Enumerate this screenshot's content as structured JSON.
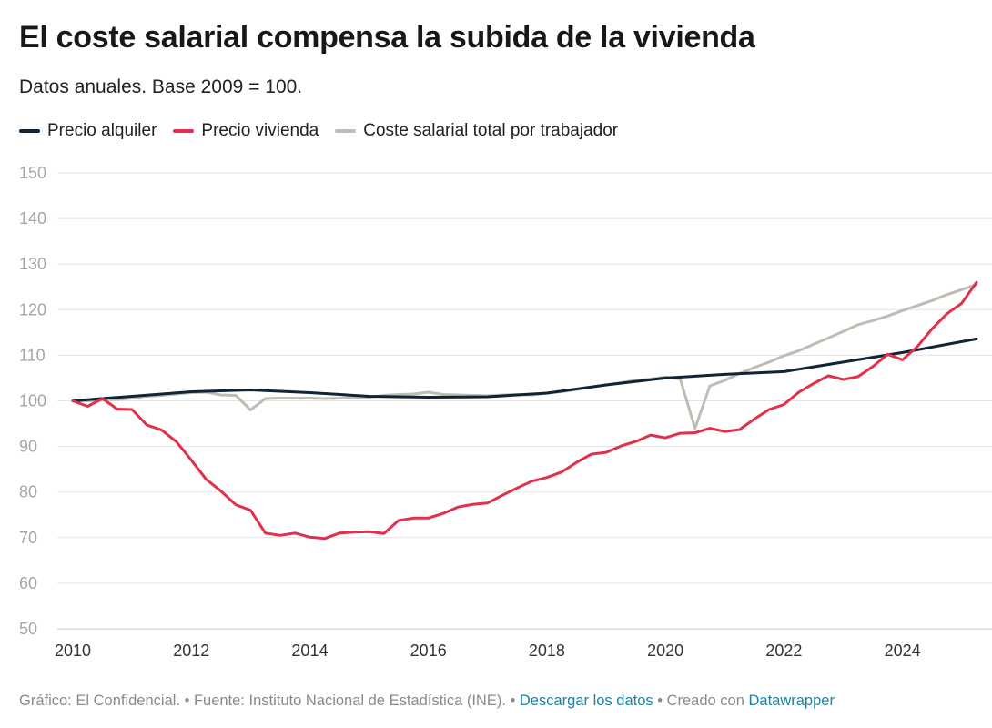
{
  "title": "El coste salarial compensa la subida de la vivienda",
  "subtitle": "Datos anuales. Base 2009 = 100.",
  "footer": {
    "prefix": "Gráfico: El Confidencial. • Fuente: Instituto Nacional de Estadística (INE). • ",
    "download": "Descargar los datos",
    "middle": " • Creado con ",
    "tool": "Datawrapper"
  },
  "chart_data": {
    "type": "line",
    "title": "El coste salarial compensa la subida de la vivienda",
    "subtitle": "Datos anuales. Base 2009 = 100.",
    "xlabel": "",
    "ylabel": "",
    "xlim": [
      2010,
      2025.25
    ],
    "ylim": [
      50,
      150
    ],
    "yticks": [
      50,
      60,
      70,
      80,
      90,
      100,
      110,
      120,
      130,
      140,
      150
    ],
    "xticks": [
      2010,
      2012,
      2014,
      2016,
      2018,
      2020,
      2022,
      2024
    ],
    "grid": "horizontal",
    "legend": "top-left",
    "series": [
      {
        "name": "Precio alquiler",
        "color": "#0f2437",
        "x": [
          2010,
          2011,
          2012,
          2013,
          2014,
          2015,
          2016,
          2017,
          2018,
          2019,
          2020,
          2021,
          2022,
          2023,
          2024,
          2025.25
        ],
        "y": [
          100.0,
          101.0,
          102.0,
          102.4,
          101.8,
          101.0,
          100.8,
          100.9,
          101.7,
          103.5,
          105.0,
          105.8,
          106.4,
          108.5,
          110.6,
          113.6
        ]
      },
      {
        "name": "Precio vivienda",
        "color": "#e0304b",
        "x": [
          2010,
          2010.25,
          2010.5,
          2010.75,
          2011,
          2011.25,
          2011.5,
          2011.75,
          2012,
          2012.25,
          2012.5,
          2012.75,
          2013,
          2013.25,
          2013.5,
          2013.75,
          2014,
          2014.25,
          2014.5,
          2014.75,
          2015,
          2015.25,
          2015.5,
          2015.75,
          2016,
          2016.25,
          2016.5,
          2016.75,
          2017,
          2017.25,
          2017.5,
          2017.75,
          2018,
          2018.25,
          2018.5,
          2018.75,
          2019,
          2019.25,
          2019.5,
          2019.75,
          2020,
          2020.25,
          2020.5,
          2020.75,
          2021,
          2021.25,
          2021.5,
          2021.75,
          2022,
          2022.25,
          2022.5,
          2022.75,
          2023,
          2023.25,
          2023.5,
          2023.75,
          2024,
          2024.25,
          2024.5,
          2024.75,
          2025,
          2025.25
        ],
        "y": [
          100.0,
          98.8,
          100.5,
          98.2,
          98.1,
          94.7,
          93.6,
          91.0,
          87.0,
          82.8,
          80.2,
          77.2,
          76.0,
          71.0,
          70.5,
          71.0,
          70.1,
          69.8,
          71.0,
          71.2,
          71.3,
          70.9,
          73.8,
          74.3,
          74.3,
          75.3,
          76.7,
          77.3,
          77.6,
          79.3,
          80.9,
          82.4,
          83.2,
          84.4,
          86.5,
          88.3,
          88.7,
          90.1,
          91.1,
          92.5,
          91.9,
          92.9,
          93.0,
          94.0,
          93.3,
          93.7,
          96.0,
          98.1,
          99.2,
          101.9,
          103.8,
          105.5,
          104.7,
          105.3,
          107.5,
          110.2,
          109.0,
          111.9,
          115.8,
          119.1,
          121.4,
          126.0
        ]
      },
      {
        "name": "Coste salarial total por trabajador",
        "color": "#bdbdb3",
        "x": [
          2010,
          2010.25,
          2010.5,
          2010.75,
          2011,
          2011.25,
          2011.5,
          2011.75,
          2012,
          2012.25,
          2012.5,
          2012.75,
          2013,
          2013.25,
          2013.5,
          2013.75,
          2014,
          2014.25,
          2014.5,
          2014.75,
          2015,
          2015.25,
          2015.5,
          2015.75,
          2016,
          2016.25,
          2016.5,
          2016.75,
          2017,
          2017.25,
          2017.5,
          2017.75,
          2018,
          2018.25,
          2018.5,
          2018.75,
          2019,
          2019.25,
          2019.5,
          2019.75,
          2020,
          2020.25,
          2020.5,
          2020.75,
          2021,
          2021.25,
          2021.5,
          2021.75,
          2022,
          2022.25,
          2022.5,
          2022.75,
          2023,
          2023.25,
          2023.5,
          2023.75,
          2024,
          2024.25,
          2024.5,
          2024.75,
          2025,
          2025.25
        ],
        "y": [
          100.0,
          100.0,
          100.2,
          100.3,
          100.6,
          101.0,
          101.2,
          101.5,
          101.8,
          101.9,
          101.3,
          101.2,
          98.0,
          100.5,
          100.6,
          100.6,
          100.6,
          100.5,
          100.6,
          100.8,
          100.8,
          101.2,
          101.4,
          101.5,
          101.9,
          101.4,
          101.3,
          101.2,
          101.1,
          101.3,
          101.4,
          101.3,
          101.7,
          102.0,
          102.5,
          103.0,
          103.5,
          104.0,
          104.5,
          104.8,
          105.2,
          104.8,
          94.0,
          103.3,
          104.5,
          106.0,
          107.3,
          108.5,
          109.9,
          111.0,
          112.4,
          113.8,
          115.2,
          116.7,
          117.6,
          118.6,
          119.8,
          120.9,
          122.0,
          123.3,
          124.4,
          125.5
        ]
      }
    ]
  }
}
